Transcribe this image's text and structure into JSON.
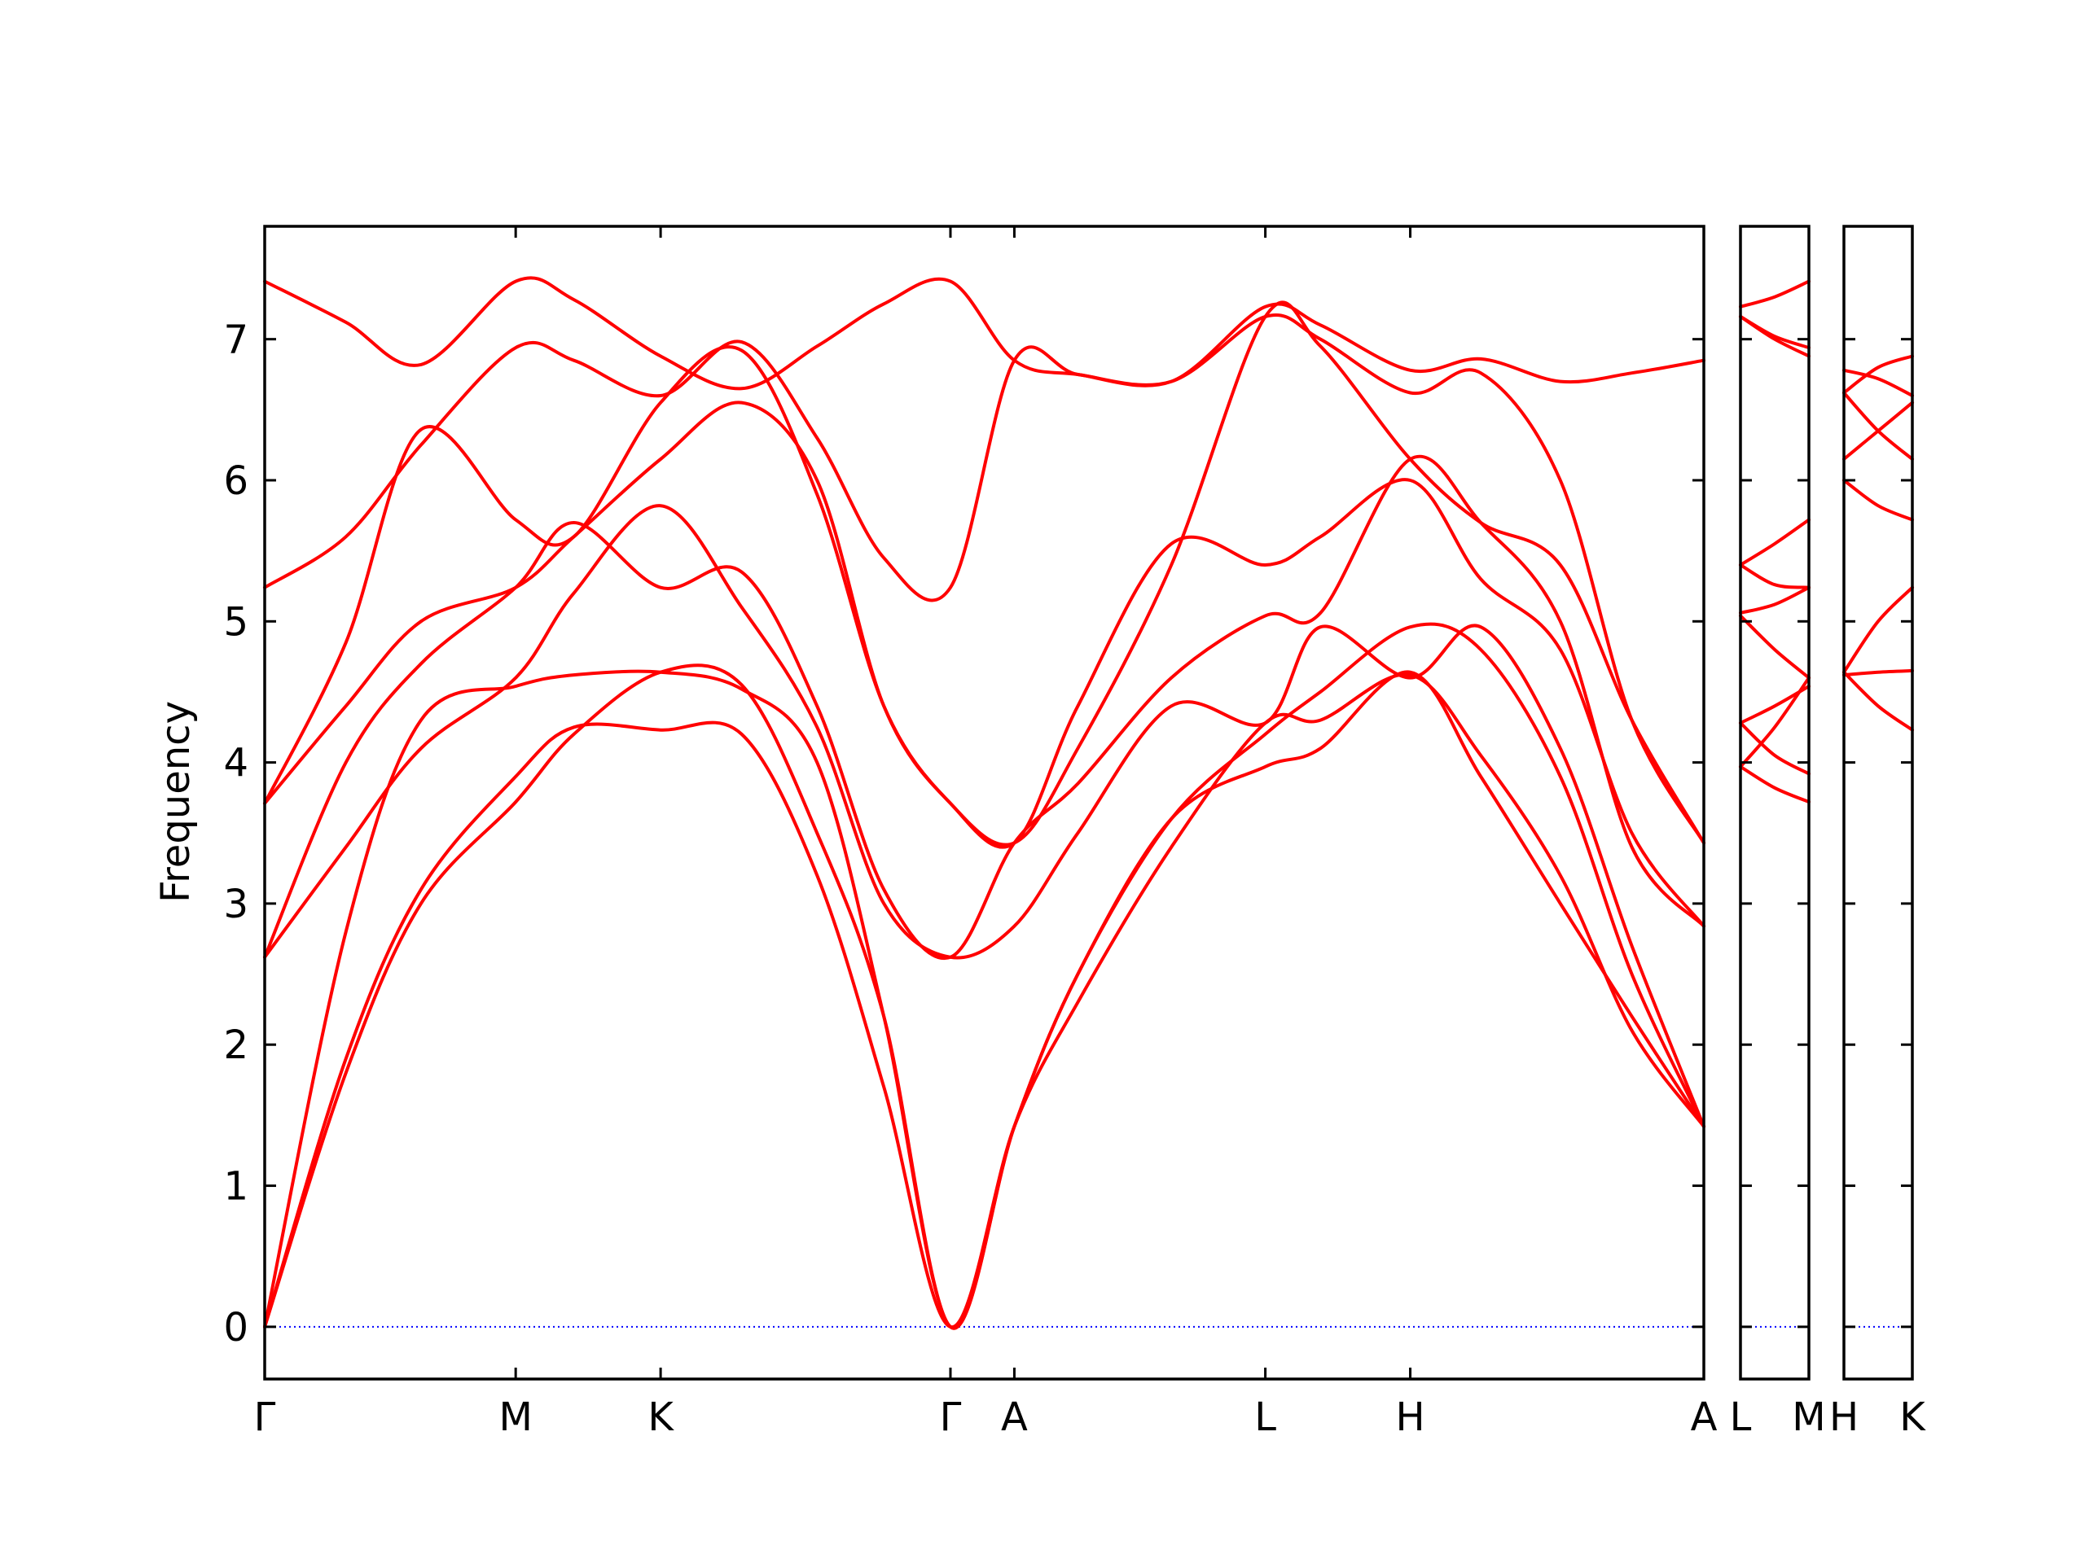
{
  "chart_data": {
    "type": "line",
    "title": "",
    "ylabel": "Frequency",
    "ylim": [
      -0.37,
      7.8
    ],
    "yticks": [
      0,
      1,
      2,
      3,
      4,
      5,
      6,
      7
    ],
    "grid": false,
    "legend": "none",
    "colors": {
      "bands": "#ff0000",
      "zero_line": "#0000ff",
      "frame": "#000000"
    },
    "panels": [
      {
        "labels": [
          "Γ",
          "M",
          "K",
          "Γ",
          "A",
          "L",
          "H",
          "A"
        ],
        "label_pos": [
          0,
          0.1744,
          0.2751,
          0.4765,
          0.5209,
          0.6953,
          0.796,
          1.0
        ]
      },
      {
        "labels": [
          "L",
          "M"
        ],
        "label_pos": [
          0,
          1
        ]
      },
      {
        "labels": [
          "H",
          "K"
        ],
        "label_pos": [
          0,
          1
        ]
      }
    ],
    "series": [
      {
        "panel": 0,
        "x": [
          0,
          0.0564,
          0.1086,
          0.1744,
          0.2148,
          0.2751,
          0.3314,
          0.3838,
          0.4302,
          0.4765,
          0.5209,
          0.565,
          0.63,
          0.6953,
          0.7336,
          0.796,
          0.845,
          0.9003,
          0.95,
          1.0
        ],
        "y": [
          7.41,
          7.12,
          6.82,
          7.41,
          7.28,
          6.88,
          6.65,
          6.95,
          7.25,
          7.41,
          6.85,
          6.75,
          6.7,
          7.23,
          7.1,
          6.78,
          6.86,
          6.7,
          6.76,
          6.85
        ]
      },
      {
        "panel": 0,
        "x": [
          0,
          0.0564,
          0.1086,
          0.1744,
          0.2148,
          0.2751,
          0.3314,
          0.3838,
          0.4302,
          0.4765,
          0.5209,
          0.565,
          0.63,
          0.6953,
          0.7336,
          0.796,
          0.845,
          0.9003,
          0.95,
          1.0
        ],
        "y": [
          5.24,
          5.6,
          6.25,
          6.94,
          6.85,
          6.6,
          6.98,
          6.3,
          5.45,
          5.24,
          6.85,
          6.75,
          6.7,
          7.16,
          7.0,
          6.62,
          6.76,
          6.0,
          4.3,
          3.43
        ]
      },
      {
        "panel": 0,
        "x": [
          0,
          0.0564,
          0.1086,
          0.1744,
          0.2148,
          0.2751,
          0.3314,
          0.3838,
          0.4302,
          0.4765,
          0.5209,
          0.565,
          0.63,
          0.6953,
          0.7336,
          0.796,
          0.845,
          0.9003,
          0.95,
          1.0
        ],
        "y": [
          3.71,
          4.85,
          6.36,
          5.72,
          5.6,
          6.55,
          6.92,
          5.9,
          4.4,
          3.71,
          3.43,
          4.1,
          5.4,
          7.16,
          6.95,
          6.15,
          5.7,
          5.4,
          4.3,
          3.43
        ]
      },
      {
        "panel": 0,
        "x": [
          0,
          0.0564,
          0.1086,
          0.1744,
          0.2148,
          0.2751,
          0.3314,
          0.3838,
          0.4302,
          0.4765,
          0.5209,
          0.565,
          0.63,
          0.6953,
          0.7336,
          0.796,
          0.845,
          0.9003,
          0.95,
          1.0
        ],
        "y": [
          3.71,
          4.4,
          5.0,
          5.24,
          5.6,
          6.15,
          6.55,
          6.0,
          4.4,
          3.71,
          3.43,
          4.4,
          5.55,
          5.4,
          5.6,
          6.0,
          5.3,
          4.8,
          3.5,
          2.84
        ]
      },
      {
        "panel": 0,
        "x": [
          0,
          0.0564,
          0.1086,
          0.1744,
          0.2148,
          0.2751,
          0.3314,
          0.3838,
          0.4302,
          0.4765,
          0.5209,
          0.565,
          0.63,
          0.6953,
          0.7336,
          0.796,
          0.845,
          0.9003,
          0.95,
          1.0
        ],
        "y": [
          2.62,
          4.0,
          4.7,
          5.24,
          5.7,
          5.24,
          5.35,
          4.4,
          3.1,
          2.62,
          3.43,
          3.85,
          4.6,
          5.04,
          5.06,
          6.15,
          5.7,
          5.0,
          3.4,
          2.84
        ]
      },
      {
        "panel": 0,
        "x": [
          0,
          0.0564,
          0.1086,
          0.1744,
          0.2148,
          0.2751,
          0.3314,
          0.3838,
          0.4302,
          0.4765,
          0.5209,
          0.565,
          0.63,
          0.6953,
          0.7336,
          0.796,
          0.845,
          0.9003,
          0.95,
          1.0
        ],
        "y": [
          2.62,
          3.4,
          4.1,
          4.6,
          5.2,
          5.82,
          5.1,
          4.25,
          3.0,
          2.62,
          2.84,
          3.5,
          4.4,
          4.28,
          4.96,
          4.6,
          4.96,
          4.1,
          2.7,
          1.42
        ]
      },
      {
        "panel": 0,
        "x": [
          0,
          0.0564,
          0.1086,
          0.1744,
          0.2148,
          0.2751,
          0.3314,
          0.3838,
          0.4302,
          0.4765,
          0.5209,
          0.565,
          0.63,
          0.6953,
          0.7336,
          0.796,
          0.845,
          0.9003,
          0.95,
          1.0
        ],
        "y": [
          0,
          2.8,
          4.3,
          4.54,
          4.62,
          4.64,
          4.52,
          4.0,
          2.2,
          0,
          1.42,
          2.5,
          3.6,
          3.97,
          4.1,
          4.64,
          3.9,
          3.0,
          2.2,
          1.42
        ]
      },
      {
        "panel": 0,
        "x": [
          0,
          0.0564,
          0.1086,
          0.1744,
          0.2148,
          0.2751,
          0.3314,
          0.3838,
          0.4302,
          0.4765,
          0.5209,
          0.565,
          0.63,
          0.6953,
          0.7336,
          0.796,
          0.845,
          0.9003,
          0.95,
          1.0
        ],
        "y": [
          0,
          1.9,
          3.1,
          3.9,
          4.25,
          4.23,
          4.2,
          3.2,
          1.7,
          0,
          1.42,
          2.3,
          3.4,
          4.28,
          4.3,
          4.62,
          4.05,
          3.2,
          2.1,
          1.42
        ]
      },
      {
        "panel": 0,
        "x": [
          0,
          0.0564,
          0.1086,
          0.1744,
          0.2148,
          0.2751,
          0.3314,
          0.3838,
          0.4302,
          0.4765,
          0.5209,
          0.565,
          0.63,
          0.6953,
          0.7336,
          0.796,
          0.845,
          0.9003,
          0.95,
          1.0
        ],
        "y": [
          0,
          1.8,
          3.0,
          3.72,
          4.2,
          4.64,
          4.55,
          3.5,
          2.2,
          0,
          1.42,
          2.5,
          3.6,
          4.2,
          4.5,
          4.96,
          4.8,
          3.9,
          2.5,
          1.42
        ]
      },
      {
        "panel": 1,
        "x": [
          0,
          0.5,
          1
        ],
        "y": [
          7.23,
          7.3,
          7.41
        ]
      },
      {
        "panel": 1,
        "x": [
          0,
          0.5,
          1
        ],
        "y": [
          7.16,
          7.02,
          6.94
        ]
      },
      {
        "panel": 1,
        "x": [
          0,
          0.5,
          1
        ],
        "y": [
          7.16,
          7.0,
          6.88
        ]
      },
      {
        "panel": 1,
        "x": [
          0,
          0.5,
          1
        ],
        "y": [
          5.4,
          5.55,
          5.72
        ]
      },
      {
        "panel": 1,
        "x": [
          0,
          0.5,
          1
        ],
        "y": [
          5.4,
          5.26,
          5.24
        ]
      },
      {
        "panel": 1,
        "x": [
          0,
          0.5,
          1
        ],
        "y": [
          5.06,
          5.12,
          5.24
        ]
      },
      {
        "panel": 1,
        "x": [
          0,
          0.5,
          1
        ],
        "y": [
          5.04,
          4.8,
          4.6
        ]
      },
      {
        "panel": 1,
        "x": [
          0,
          0.5,
          1
        ],
        "y": [
          4.28,
          4.4,
          4.54
        ]
      },
      {
        "panel": 1,
        "x": [
          0,
          0.5,
          1
        ],
        "y": [
          4.28,
          4.05,
          3.92
        ]
      },
      {
        "panel": 1,
        "x": [
          0,
          0.5,
          1
        ],
        "y": [
          3.97,
          3.82,
          3.72
        ]
      },
      {
        "panel": 1,
        "x": [
          0,
          0.5,
          1
        ],
        "y": [
          3.97,
          4.25,
          4.6
        ]
      },
      {
        "panel": 2,
        "x": [
          0,
          0.5,
          1
        ],
        "y": [
          6.78,
          6.72,
          6.6
        ]
      },
      {
        "panel": 2,
        "x": [
          0,
          0.5,
          1
        ],
        "y": [
          6.62,
          6.8,
          6.88
        ]
      },
      {
        "panel": 2,
        "x": [
          0,
          0.5,
          1
        ],
        "y": [
          6.62,
          6.35,
          6.15
        ]
      },
      {
        "panel": 2,
        "x": [
          0,
          0.5,
          1
        ],
        "y": [
          6.15,
          6.35,
          6.55
        ]
      },
      {
        "panel": 2,
        "x": [
          0,
          0.5,
          1
        ],
        "y": [
          6.0,
          5.82,
          5.72
        ]
      },
      {
        "panel": 2,
        "x": [
          0,
          0.5,
          1
        ],
        "y": [
          4.64,
          5.0,
          5.24
        ]
      },
      {
        "panel": 2,
        "x": [
          0,
          0.5,
          1
        ],
        "y": [
          4.62,
          4.64,
          4.65
        ]
      },
      {
        "panel": 2,
        "x": [
          0,
          0.5,
          1
        ],
        "y": [
          4.64,
          4.4,
          4.23
        ]
      }
    ]
  }
}
